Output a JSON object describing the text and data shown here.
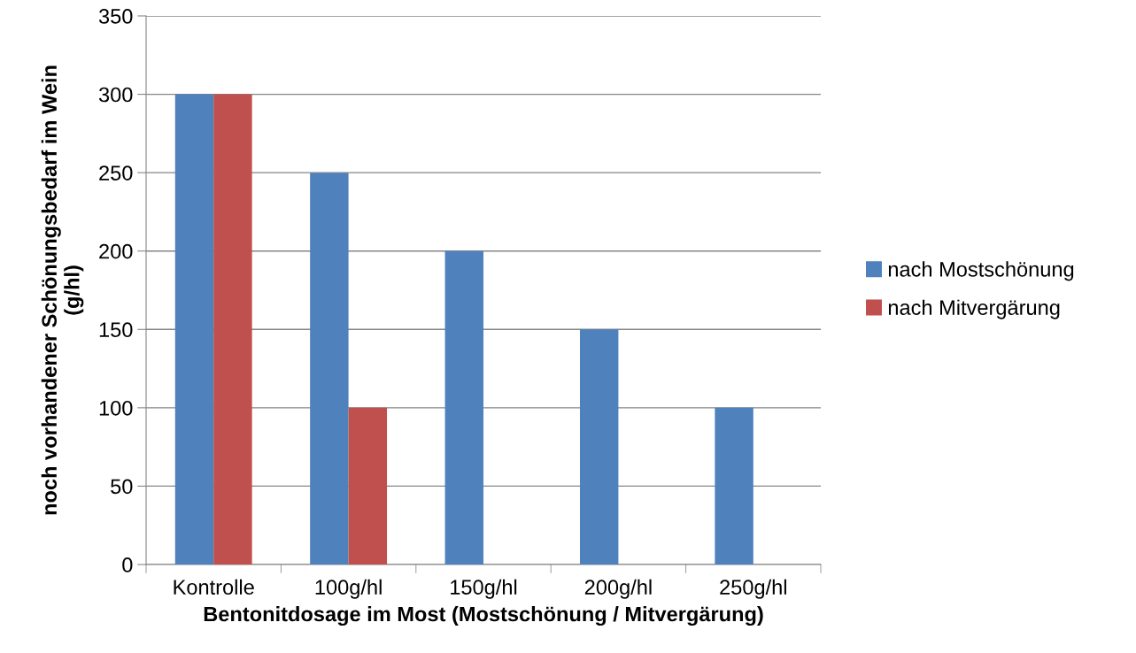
{
  "chart_data": {
    "type": "bar",
    "xlabel": "Bentonitdosage im Most (Mostschönung / Mitvergärung)",
    "ylabel": "noch vorhandener Schönungsbedarf im Wein\n(g/hl)",
    "categories": [
      "Kontrolle",
      "100g/hl",
      "150g/hl",
      "200g/hl",
      "250g/hl"
    ],
    "series": [
      {
        "name": "nach Mostschönung",
        "color": "#4f81bd",
        "values": [
          300,
          250,
          200,
          150,
          100
        ]
      },
      {
        "name": "nach Mitvergärung",
        "color": "#c0504d",
        "values": [
          300,
          100,
          null,
          null,
          null
        ]
      }
    ],
    "ylim": [
      0,
      350
    ],
    "yticks": [
      0,
      50,
      100,
      150,
      200,
      250,
      300,
      350
    ],
    "grid": "y",
    "legend": "right"
  }
}
